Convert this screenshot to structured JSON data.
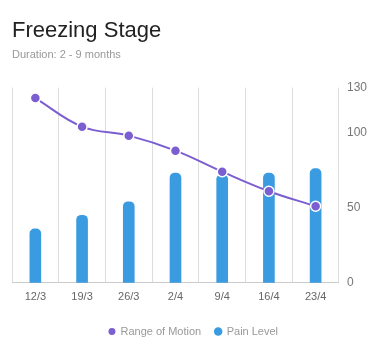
{
  "chart_data": {
    "type": "bar",
    "title": "Freezing Stage",
    "subtitle": "Duration: 2 - 9 months",
    "categories": [
      "12/3",
      "19/3",
      "26/3",
      "2/4",
      "9/4",
      "16/4",
      "23/4"
    ],
    "series": [
      {
        "name": "Range of Motion",
        "type": "line",
        "color": "#7b5fd0",
        "marker": "circle",
        "values": [
          123,
          104,
          98,
          88,
          74,
          61,
          51
        ]
      },
      {
        "name": "Pain Level",
        "type": "bar",
        "color": "#3a9be0",
        "values": [
          36,
          45,
          54,
          73,
          72,
          73,
          76
        ]
      }
    ],
    "ylim": [
      0,
      130
    ],
    "yticks": [
      0,
      50,
      100,
      130
    ],
    "grid": true,
    "legend": "bottom"
  }
}
